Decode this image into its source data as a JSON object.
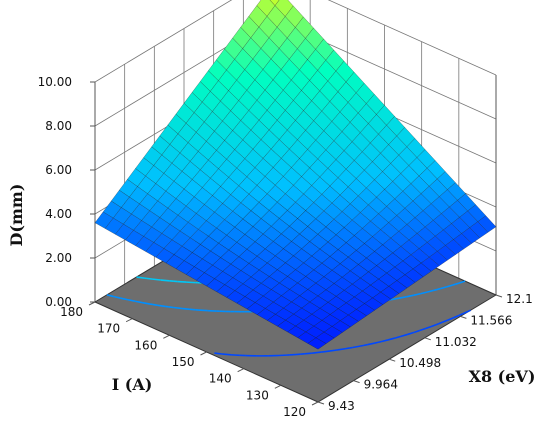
{
  "chart_data": {
    "type": "surface3d",
    "title": "",
    "xlabel": "I (A)",
    "ylabel": "X8 (eV)",
    "zlabel": "D(mm)",
    "x_ticks": [
      "180",
      "170",
      "160",
      "150",
      "140",
      "130",
      "120"
    ],
    "y_ticks": [
      "12.1",
      "11.566",
      "11.032",
      "10.498",
      "9.964",
      "9.43"
    ],
    "z_ticks": [
      "0.00",
      "2.00",
      "4.00",
      "6.00",
      "8.00",
      "10.00"
    ],
    "x_range": [
      120,
      180
    ],
    "y_range": [
      9.43,
      12.1
    ],
    "z_range": [
      0,
      10
    ],
    "corner_values": [
      {
        "I": 180,
        "X8": 9.43,
        "D": 3.6
      },
      {
        "I": 120,
        "X8": 9.43,
        "D": 2.4
      },
      {
        "I": 180,
        "X8": 12.1,
        "D": 9.6
      },
      {
        "I": 120,
        "X8": 12.1,
        "D": 3.1
      }
    ],
    "colormap": [
      "#0000ff",
      "#00bfff",
      "#00ffc0",
      "#ffff00"
    ],
    "floor_color": "#6e6e6e",
    "grid": true
  }
}
